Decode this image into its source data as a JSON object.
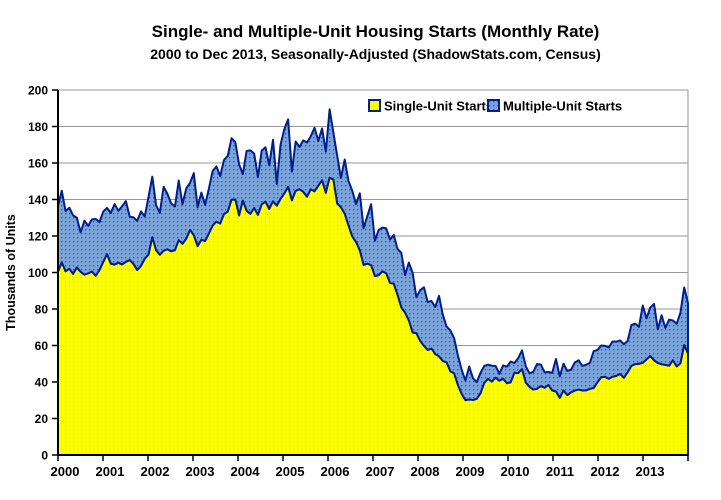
{
  "title": "Single- and Multiple-Unit Housing Starts (Monthly Rate)",
  "subtitle": "2000 to Dec 2013, Seasonally-Adjusted (ShadowStats.com, Census)",
  "chart_data": {
    "type": "area",
    "stacked": true,
    "title": "Single- and Multiple-Unit Housing Starts (Monthly Rate)",
    "subtitle": "2000 to Dec 2013, Seasonally-Adjusted (ShadowStats.com, Census)",
    "xlabel": "",
    "ylabel": "Thousands of Units",
    "ylim": [
      0,
      200
    ],
    "y_ticks": [
      0,
      20,
      40,
      60,
      80,
      100,
      120,
      140,
      160,
      180,
      200
    ],
    "x_tick_labels": [
      "2000",
      "2001",
      "2002",
      "2003",
      "2004",
      "2005",
      "2006",
      "2007",
      "2008",
      "2009",
      "2010",
      "2011",
      "2012",
      "2013"
    ],
    "grid": true,
    "legend_position": "top-right-inside",
    "x_unit": "month",
    "x_start": "Jan 2000",
    "x_end": "Dec 2013",
    "colors": {
      "single_fill": "#FFFF00",
      "single_dot": "#EADB00",
      "multiple_fill": "#7CA6D9",
      "multiple_dot": "#3A5DAE",
      "border_line": "#001E8C",
      "grid_line": "#969696",
      "axis_line": "#000000",
      "text": "#000000",
      "background": "#FFFFFF"
    },
    "series": [
      {
        "name": "Single-Unit Starts",
        "values": [
          100.4,
          105.5,
          100.6,
          102.0,
          99.2,
          102.7,
          100.3,
          98.8,
          99.5,
          100.5,
          98.2,
          101.3,
          105.7,
          110.0,
          104.8,
          104.3,
          105.3,
          104.4,
          105.8,
          106.8,
          104.7,
          101.3,
          103.6,
          107.5,
          109.8,
          119.3,
          112.2,
          109.7,
          111.9,
          112.7,
          111.6,
          112.2,
          117.7,
          115.7,
          118.5,
          123.3,
          120.4,
          114.4,
          117.9,
          117.2,
          121.3,
          125.7,
          127.8,
          126.8,
          132.0,
          133.3,
          139.8,
          140.0,
          131.2,
          139.3,
          133.8,
          132.1,
          135.3,
          131.5,
          137.3,
          138.8,
          134.8,
          139.0,
          136.6,
          140.3,
          143.3,
          146.9,
          139.5,
          144.7,
          145.6,
          144.2,
          141.5,
          145.5,
          144.5,
          147.5,
          150.5,
          143.6,
          151.9,
          150.8,
          137.8,
          135.7,
          132.2,
          125.7,
          119.7,
          116.7,
          112.1,
          104.1,
          104.8,
          104.0,
          98.0,
          98.5,
          100.6,
          99.5,
          94.3,
          93.8,
          87.7,
          80.9,
          78.0,
          73.7,
          67.1,
          66.7,
          62.5,
          59.8,
          57.5,
          58.3,
          55.3,
          54.0,
          51.5,
          50.7,
          45.8,
          44.7,
          38.3,
          33.5,
          30.0,
          30.4,
          30.1,
          30.7,
          33.8,
          39.5,
          41.7,
          40.2,
          42.3,
          40.7,
          41.8,
          39.3,
          39.8,
          45.1,
          44.8,
          47.0,
          39.6,
          37.3,
          35.8,
          36.3,
          37.7,
          36.8,
          38.3,
          35.3,
          34.8,
          31.3,
          35.3,
          32.8,
          34.3,
          35.3,
          35.8,
          35.3,
          35.4,
          36.2,
          36.7,
          39.8,
          42.6,
          42.8,
          41.7,
          42.9,
          43.3,
          44.4,
          42.3,
          45.3,
          48.8,
          49.8,
          49.9,
          50.5,
          52.3,
          54.2,
          51.9,
          50.4,
          49.7,
          49.3,
          48.9,
          51.9,
          48.5,
          50.2,
          60.2,
          55.6
        ]
      },
      {
        "name": "Multiple-Unit Starts",
        "values": [
          35.9,
          39.3,
          33.1,
          33.5,
          32.1,
          27.3,
          21.7,
          29.6,
          26.1,
          28.6,
          31.1,
          26.3,
          27.7,
          25.4,
          27.8,
          33.2,
          28.5,
          31.9,
          33.3,
          23.8,
          25.5,
          27.0,
          29.9,
          23.2,
          31.7,
          33.2,
          24.7,
          23.0,
          35.1,
          30.4,
          26.3,
          23.9,
          32.7,
          21.7,
          27.6,
          25.8,
          34.0,
          21.3,
          25.9,
          19.8,
          24.7,
          29.9,
          30.3,
          26.0,
          29.6,
          30.6,
          33.8,
          31.4,
          28.1,
          14.6,
          32.8,
          34.8,
          29.8,
          20.8,
          29.5,
          29.8,
          23.9,
          33.7,
          11.9,
          29.8,
          35.3,
          37.0,
          15.8,
          27.1,
          23.2,
          28.2,
          29.7,
          29.1,
          34.8,
          24.6,
          28.4,
          22.6,
          37.5,
          25.8,
          26.3,
          16.1,
          29.7,
          24.5,
          25.1,
          20.8,
          31.3,
          20.2,
          26.1,
          33.4,
          19.4,
          24.8,
          24.0,
          24.7,
          23.7,
          26.8,
          25.2,
          29.9,
          20.6,
          31.7,
          32.7,
          19.8,
          27.8,
          32.1,
          26.3,
          26.1,
          25.8,
          33.2,
          25.4,
          19.7,
          22.5,
          19.3,
          16.3,
          13.2,
          10.8,
          18.1,
          12.0,
          9.2,
          11.2,
          9.3,
          7.8,
          8.7,
          6.5,
          3.8,
          7.3,
          9.1,
          11.4,
          5.3,
          8.3,
          10.3,
          9.0,
          7.4,
          9.8,
          13.6,
          11.8,
          8.5,
          7.2,
          9.7,
          17.8,
          11.8,
          14.7,
          13.3,
          12.4,
          15.4,
          16.1,
          13.5,
          14.1,
          14.3,
          20.2,
          17.7,
          17.4,
          17.0,
          17.2,
          19.3,
          18.8,
          18.4,
          18.4,
          17.2,
          22.4,
          22.2,
          20.3,
          31.4,
          22.6,
          26.6,
          30.9,
          18.4,
          26.9,
          20.3,
          25.3,
          21.8,
          23.4,
          27.8,
          31.6,
          27.7
        ]
      }
    ]
  }
}
